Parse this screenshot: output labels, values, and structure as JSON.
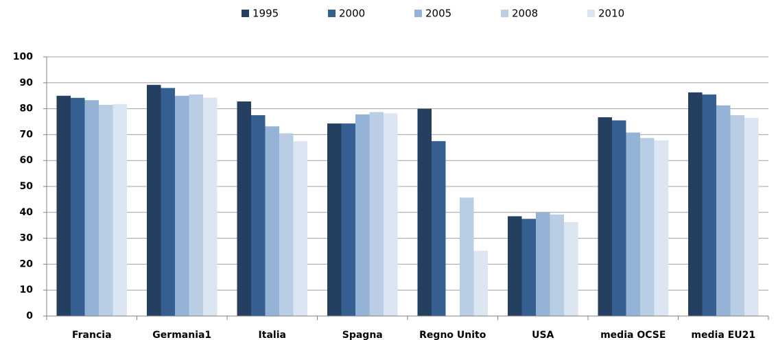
{
  "chart_data": {
    "type": "bar",
    "categories": [
      "Francia",
      "Germania1",
      "Italia",
      "Spagna",
      "Regno Unito",
      "USA",
      "media OCSE",
      "media EU21"
    ],
    "series": [
      {
        "name": "1995",
        "color": "#243f60",
        "values": [
          85,
          89.2,
          82.8,
          74.3,
          80,
          38.5,
          76.7,
          86.3
        ]
      },
      {
        "name": "2000",
        "color": "#365f91",
        "values": [
          84.2,
          88,
          77.5,
          74.3,
          67.5,
          37.5,
          75.5,
          85.5
        ]
      },
      {
        "name": "2005",
        "color": "#95b3d7",
        "values": [
          83.3,
          85,
          73.2,
          77.8,
          null,
          40,
          70.8,
          81.3
        ]
      },
      {
        "name": "2008",
        "color": "#b9cde5",
        "values": [
          81.5,
          85.5,
          70.5,
          78.7,
          45.7,
          39.2,
          68.7,
          77.5
        ]
      },
      {
        "name": "2010",
        "color": "#dce6f2",
        "values": [
          81.8,
          84.3,
          67.5,
          78.2,
          25.2,
          36.3,
          67.8,
          76.5
        ]
      }
    ],
    "ylim": [
      0,
      100
    ],
    "yticks": [
      0,
      10,
      20,
      30,
      40,
      50,
      60,
      70,
      80,
      90,
      100
    ],
    "grid": true,
    "legend": "top"
  }
}
